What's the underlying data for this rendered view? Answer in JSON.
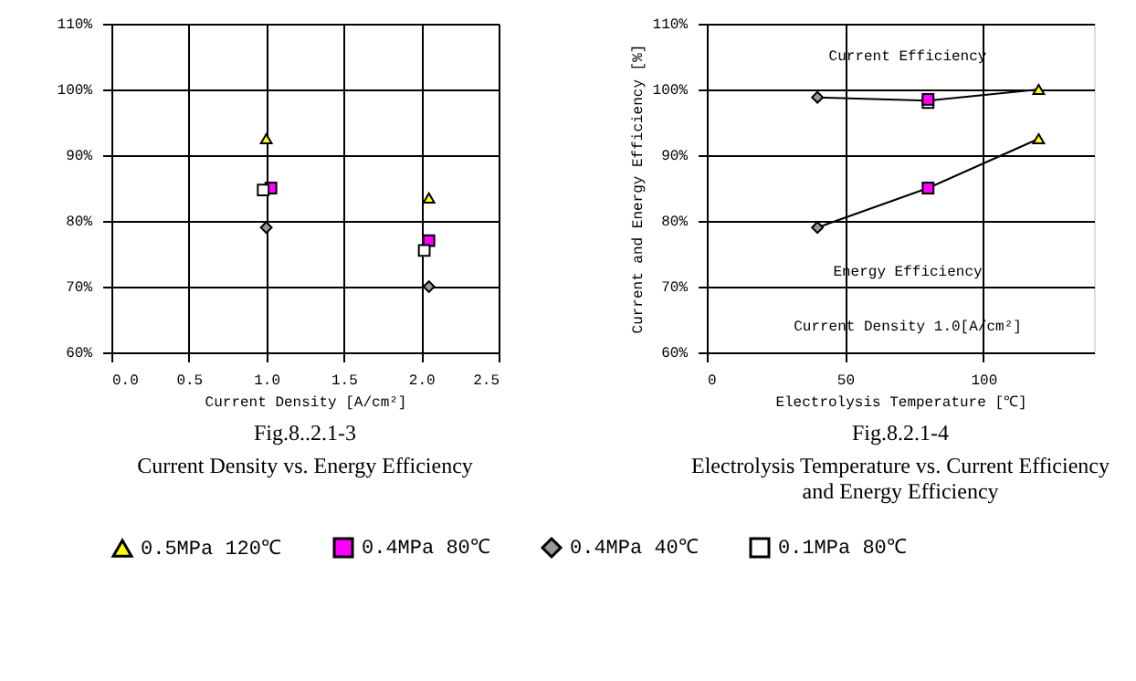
{
  "chart_data": [
    {
      "type": "scatter",
      "title": "Fig.8..2.1-3",
      "subtitle": "Current Density vs. Energy Efficiency",
      "xlabel": "Current Density [A/cm²]",
      "xlim": [
        0,
        2.5
      ],
      "xticks": [
        {
          "value": 0,
          "label": "0.0"
        },
        {
          "value": 0.5,
          "label": "0.5"
        },
        {
          "value": 1,
          "label": "1.0"
        },
        {
          "value": 1.5,
          "label": "1.5"
        },
        {
          "value": 2,
          "label": "2.0"
        },
        {
          "value": 2.5,
          "label": "2.5"
        }
      ],
      "ylim": [
        60,
        110
      ],
      "yticks": [
        {
          "value": 60,
          "label": "60%"
        },
        {
          "value": 70,
          "label": "70%"
        },
        {
          "value": 80,
          "label": "80%"
        },
        {
          "value": 90,
          "label": "90%"
        },
        {
          "value": 100,
          "label": "100%"
        },
        {
          "value": 110,
          "label": "110%"
        }
      ],
      "grid": true,
      "legend": "bottom",
      "series": [
        {
          "name": "0.5MPa 120℃",
          "color": "#ffff00",
          "marker": "triangle",
          "x": [
            1.0,
            2.05
          ],
          "values": [
            92.5,
            83.5
          ]
        },
        {
          "name": "0.4MPa 80℃",
          "color": "#ff00ff",
          "marker": "square",
          "x": [
            1.03,
            2.05
          ],
          "values": [
            85,
            77
          ]
        },
        {
          "name": "0.4MPa 40℃",
          "color": "#999999",
          "marker": "diamond",
          "x": [
            1.0,
            2.05
          ],
          "values": [
            79,
            70
          ]
        },
        {
          "name": "0.1MPa 80℃",
          "color": "#ffffff",
          "marker": "square",
          "x": [
            0.98,
            2.02
          ],
          "values": [
            84.7,
            75.5
          ]
        }
      ]
    },
    {
      "type": "scatter",
      "title": "Fig.8.2.1-4",
      "subtitle": "Electrolysis Temperature vs. Current Efficiency and Energy Efficiency",
      "xlabel": "Electrolysis Temperature [℃]",
      "ylabel": "Current and Energy Efficiency [%]",
      "xlim": [
        0,
        140
      ],
      "xticks": [
        0,
        50,
        100
      ],
      "ylim": [
        60,
        110
      ],
      "yticks": [
        {
          "value": 60,
          "label": "60%"
        },
        {
          "value": 70,
          "label": "70%"
        },
        {
          "value": 80,
          "label": "80%"
        },
        {
          "value": 90,
          "label": "90%"
        },
        {
          "value": 100,
          "label": "100%"
        },
        {
          "value": 110,
          "label": "110%"
        }
      ],
      "grid": true,
      "legend": "bottom",
      "annotations": [
        "Current Efficiency",
        "Energy Efficiency",
        "Current Density 1.0[A/cm²]"
      ],
      "series": [
        {
          "type": "line",
          "color": "#000000",
          "marker": "none",
          "x": [
            40,
            80,
            120
          ],
          "values": [
            98.8,
            98.3,
            100
          ]
        },
        {
          "type": "line",
          "color": "#000000",
          "marker": "none",
          "x": [
            40,
            80,
            120
          ],
          "values": [
            79,
            85,
            92.5
          ]
        },
        {
          "name": "0.1MPa 80℃",
          "color": "#ffffff",
          "marker": "square",
          "x": [
            80
          ],
          "values": [
            98
          ]
        },
        {
          "name": "0.5MPa 120℃",
          "color": "#ffff00",
          "marker": "triangle",
          "x": [
            120,
            120
          ],
          "values": [
            100,
            92.5
          ]
        },
        {
          "name": "0.4MPa 80℃",
          "color": "#ff00ff",
          "marker": "square",
          "x": [
            80,
            80
          ],
          "values": [
            98.5,
            85
          ]
        },
        {
          "name": "0.4MPa 40℃",
          "color": "#999999",
          "marker": "diamond",
          "x": [
            40,
            40
          ],
          "values": [
            98.8,
            79
          ]
        }
      ]
    }
  ]
}
